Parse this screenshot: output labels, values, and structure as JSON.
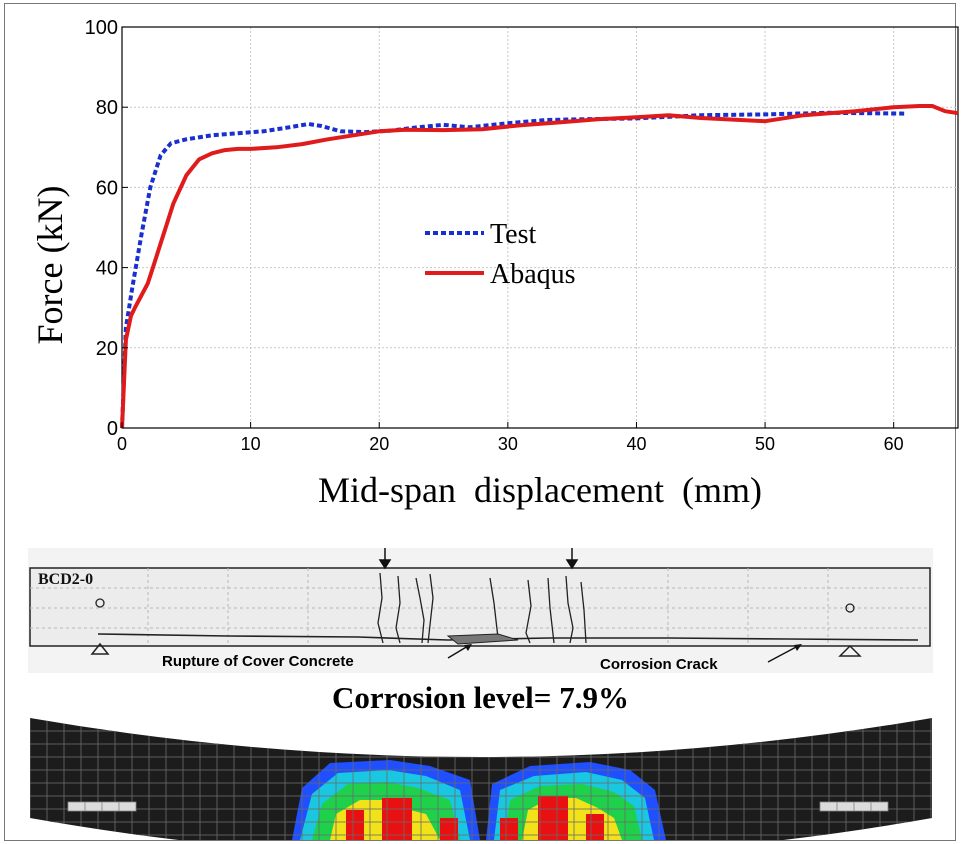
{
  "chart_data": {
    "type": "line",
    "title": "",
    "xlabel": "Mid-span  displacement  (mm)",
    "ylabel": "Force (kN)",
    "xlim": [
      0,
      65
    ],
    "ylim": [
      0,
      100
    ],
    "xticks": [
      0,
      10,
      20,
      30,
      40,
      50,
      60
    ],
    "yticks": [
      0,
      20,
      40,
      60,
      80,
      100
    ],
    "grid": true,
    "legend_position": "center",
    "series": [
      {
        "name": "Test",
        "color": "#1a2fd0",
        "style": "dotted",
        "x": [
          0,
          0.3,
          0.8,
          1.5,
          2.2,
          3.0,
          3.8,
          5.0,
          7.0,
          9.0,
          11.0,
          13.0,
          14.5,
          15.5,
          17.0,
          19.0,
          21.0,
          23.0,
          25.0,
          27.0,
          30.0,
          33.0,
          36.0,
          40.0,
          45.0,
          50.0,
          55.0,
          58.0,
          61.0
        ],
        "y": [
          0,
          25,
          35,
          48,
          60,
          68,
          71,
          72,
          73,
          73.5,
          74,
          75,
          75.8,
          75.3,
          74,
          73.8,
          74.2,
          75,
          75.6,
          75,
          76,
          76.8,
          77,
          77.2,
          78,
          78.2,
          78.6,
          78.5,
          78.4
        ]
      },
      {
        "name": "Abaqus",
        "color": "#e01b1b",
        "style": "solid",
        "x": [
          0,
          0.3,
          0.7,
          1.0,
          1.5,
          2.0,
          2.5,
          3.0,
          3.5,
          4.0,
          5.0,
          6.0,
          7.0,
          8.0,
          9.0,
          10.0,
          12.0,
          14.0,
          16.0,
          18.0,
          20.0,
          22.0,
          25.0,
          28.0,
          31.0,
          34.0,
          37.0,
          40.0,
          42.5,
          45.0,
          50.0,
          53.0,
          57.0,
          60.0,
          62.0,
          63.0,
          64.0,
          65.0
        ],
        "y": [
          0,
          22,
          28,
          30,
          33,
          36,
          41,
          46,
          51,
          56,
          63,
          67,
          68.5,
          69.3,
          69.6,
          69.6,
          70,
          70.8,
          72,
          73,
          74,
          74.4,
          74.3,
          74.5,
          75.5,
          76.2,
          77,
          77.5,
          78,
          77.3,
          76.5,
          78,
          79,
          80,
          80.3,
          80.3,
          79,
          78.5
        ]
      }
    ]
  },
  "specimen": {
    "id": "BCD2-0",
    "rupture_label": "Rupture of Cover Concrete",
    "crack_label": "Corrosion Crack"
  },
  "corrosion_label": "Corrosion level= 7.9%"
}
